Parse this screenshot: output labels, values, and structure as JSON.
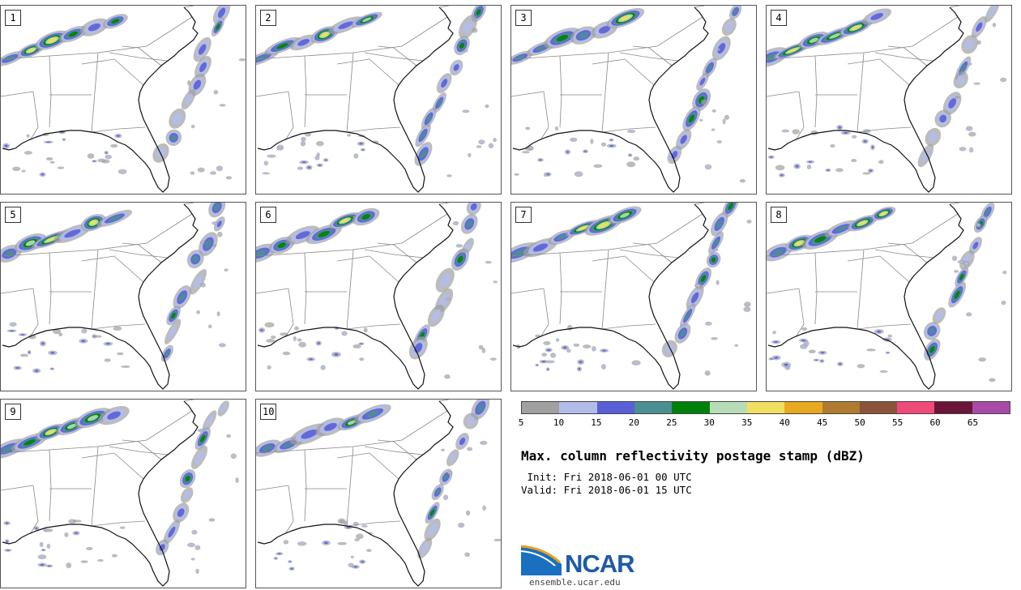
{
  "panels": [
    {
      "label": "1"
    },
    {
      "label": "2"
    },
    {
      "label": "3"
    },
    {
      "label": "4"
    },
    {
      "label": "5"
    },
    {
      "label": "6"
    },
    {
      "label": "7"
    },
    {
      "label": "8"
    },
    {
      "label": "9"
    },
    {
      "label": "10"
    }
  ],
  "colorbar": {
    "ticks": [
      "5",
      "10",
      "15",
      "20",
      "25",
      "30",
      "35",
      "40",
      "45",
      "50",
      "55",
      "60",
      "65"
    ],
    "colors": [
      "#a0a0a0",
      "#b3bce8",
      "#5a5fd6",
      "#4a8f93",
      "#00800a",
      "#b8dcb8",
      "#f0df60",
      "#e8a820",
      "#b07a30",
      "#8a5438",
      "#ee4b7a",
      "#6a1638",
      "#a84aa8"
    ]
  },
  "title": "Max. column reflectivity postage stamp (dBZ)",
  "init": " Init: Fri 2018-06-01 00 UTC",
  "valid": "Valid: Fri 2018-06-01 15 UTC",
  "logo": {
    "text": "NCAR",
    "url": "ensemble.ucar.edu"
  }
}
